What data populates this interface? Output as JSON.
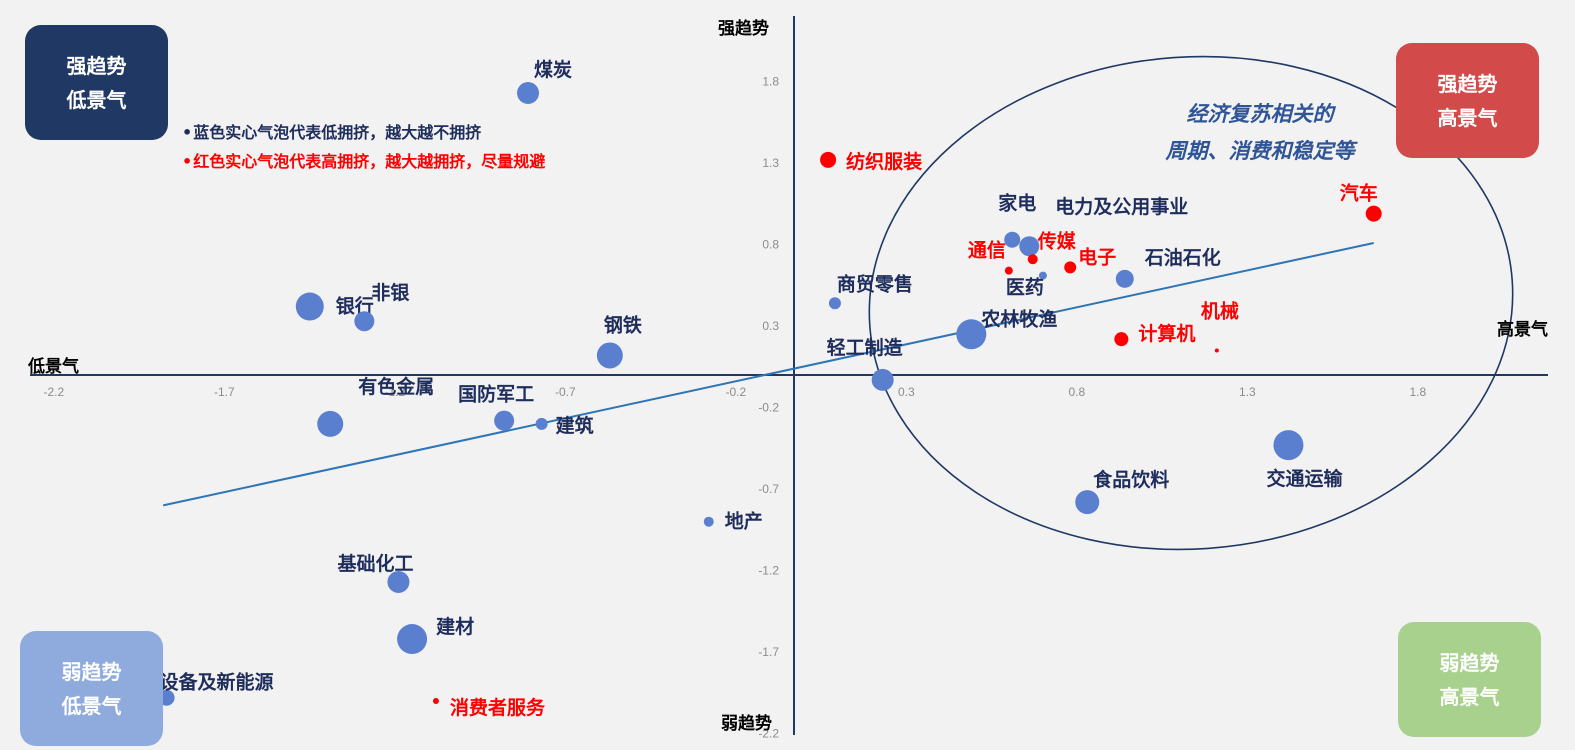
{
  "chart_data": {
    "type": "scatter",
    "subtype": "bubble",
    "x_axis_label_left": "低景气",
    "x_axis_label_right": "高景气",
    "y_axis_label_top": "强趋势",
    "y_axis_label_bottom": "弱趋势",
    "xlim": [
      -2.2,
      2.2
    ],
    "ylim": [
      -2.2,
      2.1
    ],
    "x_ticks": [
      "-2.2",
      "-1.7",
      "-1.2",
      "-0.7",
      "-0.2",
      "0.3",
      "0.8",
      "1.3",
      "1.8"
    ],
    "y_ticks": [
      "1.8",
      "1.3",
      "0.8",
      "0.3",
      "-0.2",
      "-0.7",
      "-1.2",
      "-1.7",
      "-2.2"
    ],
    "points": [
      {
        "name": "煤炭",
        "x": -0.78,
        "y": 1.73,
        "size": 11,
        "color": "blue"
      },
      {
        "name": "纺织服装",
        "x": 0.1,
        "y": 1.32,
        "size": 8,
        "color": "red"
      },
      {
        "name": "汽车",
        "x": 1.7,
        "y": 0.99,
        "size": 8,
        "color": "red"
      },
      {
        "name": "家电",
        "x": 0.64,
        "y": 0.83,
        "size": 8,
        "color": "blue"
      },
      {
        "name": "电力及公用事业",
        "x": 0.69,
        "y": 0.79,
        "size": 10,
        "color": "blue"
      },
      {
        "name": "传媒",
        "x": 0.7,
        "y": 0.71,
        "size": 5,
        "color": "red"
      },
      {
        "name": "通信",
        "x": 0.63,
        "y": 0.64,
        "size": 4,
        "color": "red"
      },
      {
        "name": "电子",
        "x": 0.81,
        "y": 0.66,
        "size": 6,
        "color": "red"
      },
      {
        "name": "医药",
        "x": 0.73,
        "y": 0.61,
        "size": 4,
        "color": "blue"
      },
      {
        "name": "石油石化",
        "x": 0.97,
        "y": 0.59,
        "size": 9,
        "color": "blue"
      },
      {
        "name": "商贸零售",
        "x": 0.12,
        "y": 0.44,
        "size": 6,
        "color": "blue"
      },
      {
        "name": "农林牧渔",
        "x": 0.52,
        "y": 0.25,
        "size": 15,
        "color": "blue"
      },
      {
        "name": "计算机",
        "x": 0.96,
        "y": 0.22,
        "size": 7,
        "color": "red"
      },
      {
        "name": "机械",
        "x": 1.24,
        "y": 0.15,
        "size": 2,
        "color": "red"
      },
      {
        "name": "轻工制造",
        "x": 0.26,
        "y": -0.03,
        "size": 11,
        "color": "blue"
      },
      {
        "name": "银行",
        "x": -1.42,
        "y": 0.42,
        "size": 14,
        "color": "blue"
      },
      {
        "name": "非银",
        "x": -1.26,
        "y": 0.33,
        "size": 10,
        "color": "blue"
      },
      {
        "name": "钢铁",
        "x": -0.54,
        "y": 0.12,
        "size": 13,
        "color": "blue"
      },
      {
        "name": "有色金属",
        "x": -1.36,
        "y": -0.3,
        "size": 13,
        "color": "blue"
      },
      {
        "name": "国防军工",
        "x": -0.85,
        "y": -0.28,
        "size": 10,
        "color": "blue"
      },
      {
        "name": "建筑",
        "x": -0.74,
        "y": -0.3,
        "size": 6,
        "color": "blue"
      },
      {
        "name": "地产",
        "x": -0.25,
        "y": -0.9,
        "size": 5,
        "color": "blue"
      },
      {
        "name": "交通运输",
        "x": 1.45,
        "y": -0.43,
        "size": 15,
        "color": "blue"
      },
      {
        "name": "食品饮料",
        "x": 0.86,
        "y": -0.78,
        "size": 12,
        "color": "blue"
      },
      {
        "name": "基础化工",
        "x": -1.16,
        "y": -1.27,
        "size": 11,
        "color": "blue"
      },
      {
        "name": "建材",
        "x": -1.12,
        "y": -1.62,
        "size": 15,
        "color": "blue"
      },
      {
        "name": "设备及新能源",
        "x": -1.84,
        "y": -1.98,
        "size": 8,
        "color": "blue"
      },
      {
        "name": "消费者服务",
        "x": -1.05,
        "y": -2.0,
        "size": 3,
        "color": "red"
      }
    ],
    "trendline": {
      "x": [
        -1.85,
        1.7
      ],
      "y": [
        -0.8,
        0.81
      ]
    }
  },
  "quadrants": {
    "top_left": {
      "line1": "强趋势",
      "line2": "低景气"
    },
    "top_right": {
      "line1": "强趋势",
      "line2": "高景气"
    },
    "bottom_left": {
      "line1": "弱趋势",
      "line2": "低景气"
    },
    "bottom_right": {
      "line1": "弱趋势",
      "line2": "高景气"
    }
  },
  "notes": {
    "blue": "蓝色实心气泡代表低拥挤，越大越不拥挤",
    "red": "红色实心气泡代表高拥挤，越大越拥挤，尽量规避"
  },
  "oval_text": {
    "line1": "经济复苏相关的",
    "line2": "周期、消费和稳定等"
  },
  "colors": {
    "bubble_blue": "#5b7fcf",
    "bubble_red": "#ff0000",
    "label_blue": "#1f2d5c",
    "label_red": "#ff0000",
    "axis": "#1f3864",
    "trend": "#2e75b6",
    "quad_top_left": "#1f3864",
    "quad_top_right": "#d24a4a",
    "quad_bottom_left": "#8faadc",
    "quad_bottom_right": "#a9d18e"
  }
}
